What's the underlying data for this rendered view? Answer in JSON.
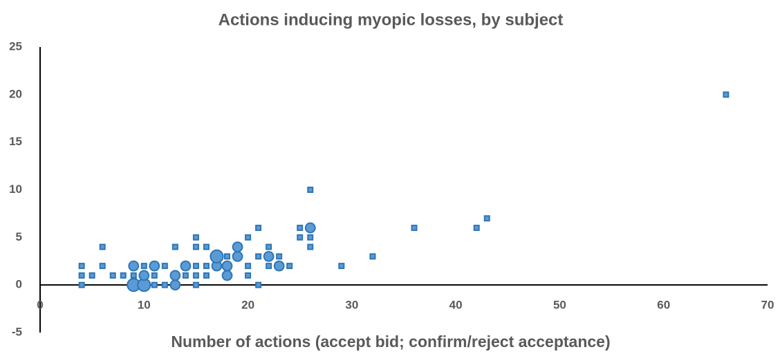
{
  "chart_data": {
    "type": "bubble",
    "title": "Actions inducing myopic losses, by subject",
    "x_label": "Number of actions (accept bid; confirm/reject acceptance)",
    "xlim": [
      0,
      70
    ],
    "xticks": [
      0,
      10,
      20,
      30,
      40,
      50,
      60,
      70
    ],
    "ylim": [
      -5,
      25
    ],
    "yticks": [
      -5,
      0,
      5,
      10,
      15,
      20,
      25
    ],
    "grid": false,
    "series": [
      {
        "color": "#2e75b6",
        "x": [
          4,
          4,
          4,
          5,
          6,
          6,
          7,
          8,
          9,
          9,
          9,
          10,
          10,
          10,
          11,
          11,
          11,
          12,
          12,
          13,
          13,
          13,
          14,
          14,
          15,
          15,
          15,
          15,
          15,
          16,
          16,
          16,
          17,
          17,
          18,
          18,
          18,
          19,
          19,
          20,
          20,
          20,
          21,
          21,
          21,
          22,
          22,
          22,
          23,
          23,
          24,
          25,
          25,
          26,
          26,
          26,
          26,
          29,
          32,
          36,
          42,
          43,
          66
        ],
        "values": [
          0,
          1,
          2,
          1,
          2,
          4,
          1,
          1,
          0,
          1,
          2,
          0,
          1,
          2,
          0,
          1,
          2,
          0,
          2,
          0,
          1,
          4,
          1,
          2,
          0,
          1,
          2,
          4,
          5,
          1,
          2,
          4,
          2,
          3,
          1,
          2,
          3,
          3,
          4,
          1,
          2,
          5,
          0,
          3,
          6,
          2,
          3,
          4,
          2,
          3,
          2,
          5,
          6,
          4,
          5,
          6,
          10,
          2,
          3,
          6,
          6,
          7,
          20
        ],
        "sizes": [
          1,
          1,
          1,
          1,
          1,
          1,
          1,
          1,
          3,
          1,
          2,
          3,
          2,
          1,
          1,
          1,
          2,
          1,
          1,
          2,
          2,
          1,
          1,
          2,
          1,
          1,
          1,
          1,
          1,
          1,
          1,
          1,
          2,
          3,
          2,
          2,
          1,
          2,
          2,
          1,
          1,
          1,
          1,
          1,
          1,
          1,
          2,
          1,
          2,
          1,
          1,
          1,
          1,
          1,
          1,
          2,
          1,
          1,
          1,
          1,
          1,
          1,
          1
        ]
      }
    ]
  }
}
